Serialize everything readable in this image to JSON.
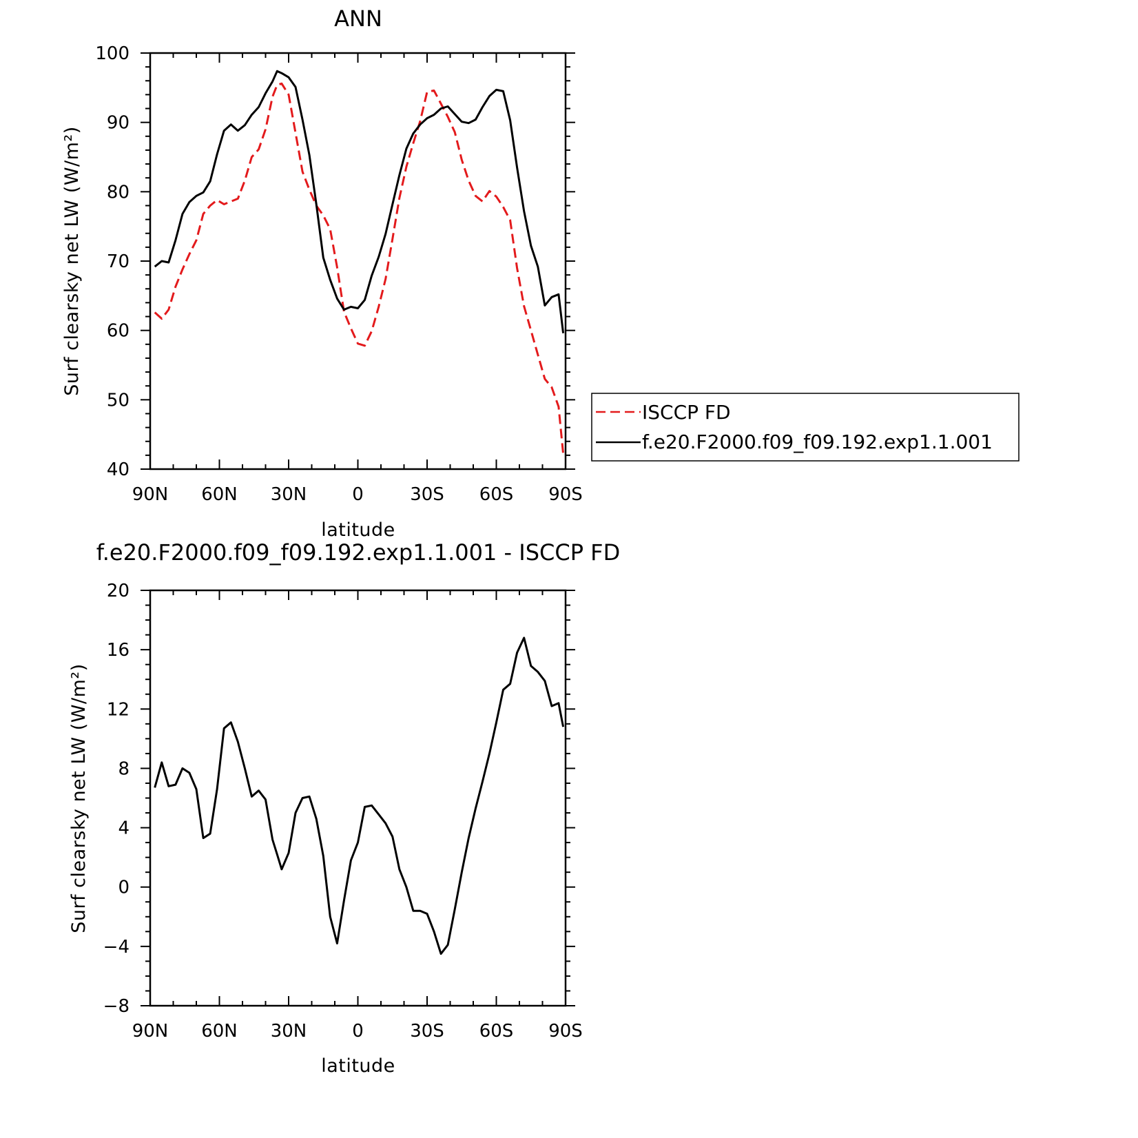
{
  "chart_data": [
    {
      "type": "line",
      "title": "ANN",
      "xlabel": "latitude",
      "ylabel": "Surf clearsky net LW (W/m²)",
      "xlim": [
        -90,
        90
      ],
      "ylim": [
        40,
        100
      ],
      "x_ticks": [
        -90,
        -60,
        -30,
        0,
        30,
        60,
        90
      ],
      "x_tick_labels": [
        "90N",
        "60N",
        "30N",
        "0",
        "30S",
        "60S",
        "90S"
      ],
      "y_ticks": [
        40,
        50,
        60,
        70,
        80,
        90,
        100
      ],
      "y_tick_labels": [
        "40",
        "50",
        "60",
        "70",
        "80",
        "90",
        "100"
      ],
      "grid": false,
      "legend_position": "right",
      "series": [
        {
          "name": "ISCCP FD",
          "color": "#e31a1c",
          "dash": "dashed",
          "x": [
            -88,
            -85,
            -82,
            -79,
            -76,
            -73,
            -70,
            -67,
            -64,
            -61,
            -58,
            -55,
            -52,
            -49,
            -46,
            -43,
            -40,
            -37,
            -35,
            -33,
            -30,
            -27,
            -24,
            -21,
            -18,
            -15,
            -12,
            -9,
            -6,
            -3,
            0,
            3,
            6,
            9,
            12,
            15,
            18,
            21,
            24,
            27,
            30,
            33,
            36,
            39,
            42,
            45,
            48,
            51,
            54,
            57,
            60,
            63,
            66,
            69,
            72,
            75,
            78,
            81,
            84,
            87,
            89
          ],
          "values": [
            62.6,
            61.7,
            63,
            66.3,
            68.8,
            71,
            73,
            76.8,
            78,
            78.8,
            78.2,
            78.6,
            79,
            81.6,
            85,
            86.1,
            89,
            93.7,
            95.4,
            95.6,
            94,
            88.5,
            82.9,
            80.3,
            78,
            76.6,
            74.6,
            69.1,
            62.7,
            60.3,
            58.1,
            57.8,
            59.9,
            63.4,
            67.4,
            73.2,
            79.1,
            83.6,
            87,
            90.2,
            94.4,
            94.6,
            92.7,
            90.8,
            88.6,
            84.6,
            81.6,
            79.4,
            78.6,
            80.1,
            79.3,
            77.8,
            75.9,
            69,
            63.5,
            60,
            56.5,
            53,
            51.8,
            49,
            42.2
          ]
        },
        {
          "name": "f.e20.F2000.f09_f09.192.exp1.1.001",
          "color": "#000000",
          "dash": "solid",
          "x": [
            -88,
            -85,
            -82,
            -79,
            -76,
            -73,
            -70,
            -67,
            -64,
            -61,
            -58,
            -55,
            -52,
            -49,
            -46,
            -43,
            -40,
            -37,
            -35,
            -33,
            -30,
            -27,
            -24,
            -21,
            -18,
            -15,
            -12,
            -9,
            -6,
            -3,
            0,
            3,
            6,
            9,
            12,
            15,
            18,
            21,
            24,
            27,
            30,
            33,
            36,
            39,
            42,
            45,
            48,
            51,
            54,
            57,
            60,
            63,
            66,
            69,
            72,
            75,
            78,
            81,
            84,
            87,
            89
          ],
          "values": [
            69.2,
            70,
            69.8,
            73,
            76.8,
            78.5,
            79.4,
            79.9,
            81.5,
            85.4,
            88.8,
            89.7,
            88.8,
            89.6,
            91.1,
            92.2,
            94.2,
            95.9,
            97.4,
            97.1,
            96.5,
            95.1,
            90.4,
            85.3,
            78.2,
            70.5,
            67.3,
            64.6,
            63,
            63.4,
            63.2,
            64.4,
            67.9,
            70.6,
            73.9,
            78.2,
            82.4,
            86.2,
            88.4,
            89.7,
            90.6,
            91.1,
            92.0,
            92.3,
            91.2,
            90.1,
            89.9,
            90.4,
            92.2,
            93.8,
            94.7,
            94.5,
            90.3,
            83.5,
            77.2,
            72.2,
            69.2,
            63.6,
            64.8,
            65.2,
            59.6
          ]
        }
      ]
    },
    {
      "type": "line",
      "title": "f.e20.F2000.f09_f09.192.exp1.1.001 - ISCCP FD",
      "xlabel": "latitude",
      "ylabel": "Surf clearsky net LW (W/m²)",
      "xlim": [
        -90,
        90
      ],
      "ylim": [
        -8,
        20
      ],
      "x_ticks": [
        -90,
        -60,
        -30,
        0,
        30,
        60,
        90
      ],
      "x_tick_labels": [
        "90N",
        "60N",
        "30N",
        "0",
        "30S",
        "60S",
        "90S"
      ],
      "y_ticks": [
        -8,
        -4,
        0,
        4,
        8,
        12,
        16,
        20
      ],
      "y_tick_labels": [
        "−8",
        "−4",
        "0",
        "4",
        "8",
        "12",
        "16",
        "20"
      ],
      "grid": false,
      "series": [
        {
          "color": "#000000",
          "dash": "solid",
          "x": [
            -88,
            -85,
            -82,
            -79,
            -76,
            -73,
            -70,
            -67,
            -64,
            -61,
            -58,
            -55,
            -52,
            -49,
            -46,
            -43,
            -40,
            -37,
            -35,
            -33,
            -30,
            -27,
            -24,
            -21,
            -18,
            -15,
            -12,
            -9,
            -6,
            -3,
            0,
            3,
            6,
            9,
            12,
            15,
            18,
            21,
            24,
            27,
            30,
            33,
            36,
            39,
            42,
            45,
            48,
            51,
            54,
            57,
            60,
            63,
            66,
            69,
            72,
            75,
            78,
            81,
            84,
            87,
            89
          ],
          "values": [
            6.7,
            8.4,
            6.8,
            6.9,
            8.0,
            7.7,
            6.6,
            3.3,
            3.6,
            6.6,
            10.7,
            11.1,
            9.8,
            8.0,
            6.1,
            6.5,
            5.9,
            3.2,
            2.2,
            1.2,
            2.3,
            5.0,
            6.0,
            6.1,
            4.6,
            2.1,
            -2.0,
            -3.8,
            -0.9,
            1.8,
            3.0,
            5.4,
            5.5,
            4.9,
            4.3,
            3.4,
            1.2,
            0.0,
            -1.6,
            -1.6,
            -1.8,
            -3.0,
            -4.5,
            -3.9,
            -1.5,
            1.0,
            3.3,
            5.3,
            7.1,
            9.0,
            11.1,
            13.3,
            13.7,
            15.8,
            16.8,
            14.9,
            14.5,
            13.9,
            12.2,
            12.4,
            10.8
          ]
        }
      ]
    }
  ],
  "legend": {
    "items": [
      {
        "label": "ISCCP FD",
        "color": "#e31a1c",
        "dash": "dashed"
      },
      {
        "label": "f.e20.F2000.f09_f09.192.exp1.1.001",
        "color": "#000000",
        "dash": "solid"
      }
    ]
  }
}
